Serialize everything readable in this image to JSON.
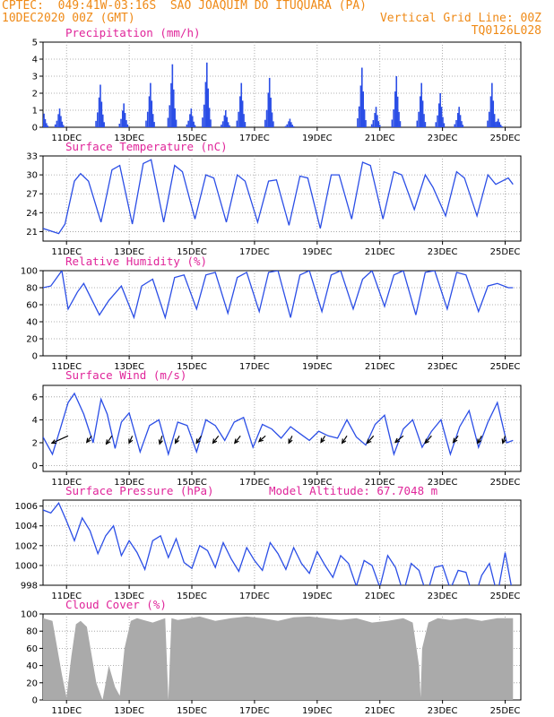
{
  "header": {
    "line1_left": "CPTEC:  049:41W-03:16S  SAO JOAQUIM DO ITUQUARA (PA)",
    "line2_left": "10DEC2020 00Z (GMT)",
    "line2_right": "Vertical Grid Line: 00Z",
    "line3_right": "TQ0126L028"
  },
  "colors": {
    "header": "#ef8a17",
    "title": "#e0259a",
    "series": "#2b4ee6",
    "cloud": "#aaaaaa",
    "grid": "#999999"
  },
  "x_tick_labels": [
    "11DEC",
    "13DEC",
    "15DEC",
    "17DEC",
    "19DEC",
    "21DEC",
    "23DEC",
    "25DEC"
  ],
  "chart_data": [
    {
      "id": "precip",
      "type": "bar",
      "title": "Precipitation (mm/h)",
      "ylim": [
        0,
        5
      ],
      "yticks": [
        0,
        1,
        2,
        3,
        4,
        5
      ],
      "x_unit": "days since 10DEC2020 00Z",
      "spikes": [
        {
          "x": 0.05,
          "peak": 0.8
        },
        {
          "x": 0.55,
          "peak": 1.1
        },
        {
          "x": 1.85,
          "peak": 2.5
        },
        {
          "x": 2.6,
          "peak": 1.4
        },
        {
          "x": 3.45,
          "peak": 2.6
        },
        {
          "x": 4.15,
          "peak": 3.7
        },
        {
          "x": 4.75,
          "peak": 1.1
        },
        {
          "x": 5.25,
          "peak": 3.8
        },
        {
          "x": 5.85,
          "peak": 1.0
        },
        {
          "x": 6.35,
          "peak": 2.6
        },
        {
          "x": 7.25,
          "peak": 2.9
        },
        {
          "x": 7.9,
          "peak": 0.5
        },
        {
          "x": 10.2,
          "peak": 3.5
        },
        {
          "x": 10.65,
          "peak": 1.2
        },
        {
          "x": 11.3,
          "peak": 3.0
        },
        {
          "x": 12.1,
          "peak": 2.6
        },
        {
          "x": 12.7,
          "peak": 2.0
        },
        {
          "x": 13.3,
          "peak": 1.2
        },
        {
          "x": 14.35,
          "peak": 2.6
        },
        {
          "x": 14.55,
          "peak": 0.5
        }
      ]
    },
    {
      "id": "temp",
      "type": "line",
      "title": "Surface Temperature (nC)",
      "ylim": [
        19.5,
        33
      ],
      "yticks": [
        21,
        24,
        27,
        30,
        33
      ],
      "x": [
        0,
        0.5,
        0.7,
        1.0,
        1.2,
        1.45,
        1.85,
        2.2,
        2.45,
        2.85,
        3.2,
        3.45,
        3.85,
        4.2,
        4.45,
        4.85,
        5.2,
        5.45,
        5.85,
        6.2,
        6.45,
        6.85,
        7.2,
        7.45,
        7.85,
        8.2,
        8.45,
        8.85,
        9.2,
        9.45,
        9.85,
        10.2,
        10.45,
        10.85,
        11.2,
        11.45,
        11.85,
        12.2,
        12.45,
        12.85,
        13.2,
        13.45,
        13.85,
        14.2,
        14.45,
        14.85,
        15.0
      ],
      "values": [
        21.5,
        20.7,
        22.2,
        29.0,
        30.2,
        29.0,
        22.5,
        30.8,
        31.5,
        22.2,
        31.8,
        32.4,
        22.5,
        31.5,
        30.5,
        23.0,
        30.0,
        29.5,
        22.5,
        30.0,
        29.0,
        22.5,
        29.0,
        29.2,
        22.0,
        29.8,
        29.5,
        21.5,
        30.0,
        30.0,
        23.0,
        32.0,
        31.5,
        23.0,
        30.5,
        30.0,
        24.5,
        30.0,
        28.0,
        23.5,
        30.5,
        29.5,
        23.5,
        30.0,
        28.5,
        29.5,
        28.5
      ]
    },
    {
      "id": "rh",
      "type": "line",
      "title": "Relative Humidity (%)",
      "ylim": [
        0,
        100
      ],
      "yticks": [
        0,
        20,
        40,
        60,
        80,
        100
      ],
      "x": [
        0,
        0.25,
        0.6,
        0.8,
        1.1,
        1.3,
        1.8,
        2.1,
        2.5,
        2.9,
        3.15,
        3.5,
        3.9,
        4.2,
        4.5,
        4.9,
        5.2,
        5.5,
        5.9,
        6.2,
        6.5,
        6.9,
        7.2,
        7.5,
        7.9,
        8.2,
        8.5,
        8.9,
        9.2,
        9.5,
        9.9,
        10.2,
        10.5,
        10.9,
        11.2,
        11.5,
        11.9,
        12.2,
        12.5,
        12.9,
        13.2,
        13.5,
        13.9,
        14.2,
        14.5,
        14.85,
        15.0
      ],
      "values": [
        80,
        82,
        100,
        55,
        75,
        85,
        48,
        65,
        82,
        45,
        82,
        90,
        45,
        92,
        95,
        55,
        95,
        98,
        50,
        92,
        98,
        52,
        98,
        100,
        45,
        95,
        100,
        52,
        95,
        100,
        55,
        90,
        100,
        58,
        95,
        100,
        48,
        98,
        100,
        55,
        98,
        95,
        52,
        82,
        85,
        80,
        80
      ]
    },
    {
      "id": "wind",
      "type": "line",
      "title": "Surface Wind (m/s)",
      "ylim": [
        -0.5,
        7
      ],
      "yticks": [
        0,
        2,
        4,
        6
      ],
      "x": [
        0,
        0.3,
        0.55,
        0.8,
        1.0,
        1.3,
        1.6,
        1.85,
        2.05,
        2.3,
        2.5,
        2.75,
        3.1,
        3.4,
        3.7,
        4.0,
        4.3,
        4.6,
        4.9,
        5.2,
        5.5,
        5.8,
        6.1,
        6.4,
        6.7,
        7.0,
        7.3,
        7.6,
        7.9,
        8.2,
        8.5,
        8.8,
        9.1,
        9.4,
        9.7,
        10.0,
        10.3,
        10.6,
        10.9,
        11.2,
        11.5,
        11.8,
        12.1,
        12.4,
        12.7,
        13.0,
        13.3,
        13.6,
        13.9,
        14.2,
        14.5,
        14.8,
        15.0
      ],
      "values": [
        2.5,
        1.0,
        3.2,
        5.5,
        6.3,
        4.5,
        2.0,
        5.8,
        4.5,
        1.5,
        3.8,
        4.6,
        1.2,
        3.5,
        4.0,
        1.0,
        3.8,
        3.5,
        1.2,
        4.0,
        3.5,
        2.2,
        3.8,
        4.2,
        1.6,
        3.6,
        3.2,
        2.4,
        3.4,
        2.8,
        2.2,
        3.0,
        2.6,
        2.4,
        4.0,
        2.5,
        1.8,
        3.6,
        4.4,
        1.0,
        3.2,
        4.0,
        1.6,
        3.0,
        4.0,
        1.0,
        3.4,
        4.8,
        1.6,
        3.8,
        5.5,
        2.0,
        2.2
      ],
      "arrows": [
        {
          "x": 0.8,
          "dx": -2.0,
          "dy": -0.9
        },
        {
          "x": 1.55,
          "dx": -0.6,
          "dy": -0.8
        },
        {
          "x": 2.2,
          "dx": -0.7,
          "dy": -1.0
        },
        {
          "x": 2.85,
          "dx": -0.4,
          "dy": -0.9
        },
        {
          "x": 3.8,
          "dx": -0.3,
          "dy": -1.0
        },
        {
          "x": 4.35,
          "dx": -0.5,
          "dy": -0.9
        },
        {
          "x": 5.05,
          "dx": -0.6,
          "dy": -0.9
        },
        {
          "x": 5.6,
          "dx": -0.7,
          "dy": -0.9
        },
        {
          "x": 6.3,
          "dx": -0.7,
          "dy": -0.9
        },
        {
          "x": 7.1,
          "dx": -0.8,
          "dy": -0.7
        },
        {
          "x": 7.95,
          "dx": -0.4,
          "dy": -0.9
        },
        {
          "x": 9.0,
          "dx": -0.5,
          "dy": -0.8
        },
        {
          "x": 9.7,
          "dx": -0.6,
          "dy": -0.9
        },
        {
          "x": 10.55,
          "dx": -0.8,
          "dy": -0.9
        },
        {
          "x": 11.5,
          "dx": -1.0,
          "dy": -0.8
        },
        {
          "x": 12.4,
          "dx": -0.8,
          "dy": -0.9
        },
        {
          "x": 13.25,
          "dx": -0.6,
          "dy": -0.8
        },
        {
          "x": 14.0,
          "dx": -0.5,
          "dy": -0.9
        },
        {
          "x": 14.75,
          "dx": -0.3,
          "dy": -0.9
        }
      ]
    },
    {
      "id": "pres",
      "type": "line",
      "title": "Surface Pressure (hPa)",
      "subtitle": "Model Altitude: 67.7048 m",
      "ylim": [
        998,
        1006.6
      ],
      "yticks": [
        998,
        1000,
        1002,
        1004,
        1006
      ],
      "x": [
        0,
        0.25,
        0.5,
        0.75,
        1.0,
        1.25,
        1.5,
        1.75,
        2.0,
        2.25,
        2.5,
        2.75,
        3.0,
        3.25,
        3.5,
        3.75,
        4.0,
        4.25,
        4.5,
        4.75,
        5.0,
        5.25,
        5.5,
        5.75,
        6.0,
        6.25,
        6.5,
        6.75,
        7.0,
        7.25,
        7.5,
        7.75,
        8.0,
        8.25,
        8.5,
        8.75,
        9.0,
        9.25,
        9.5,
        9.75,
        10.0,
        10.25,
        10.5,
        10.75,
        11.0,
        11.25,
        11.5,
        11.75,
        12.0,
        12.25,
        12.5,
        12.75,
        13.0,
        13.25,
        13.5,
        13.75,
        14.0,
        14.25,
        14.5,
        14.75,
        15.0
      ],
      "values": [
        1005.6,
        1005.3,
        1006.3,
        1004.5,
        1002.5,
        1004.8,
        1003.5,
        1001.2,
        1003.0,
        1004.0,
        1001.0,
        1002.5,
        1001.3,
        999.6,
        1002.5,
        1003.0,
        1000.8,
        1002.7,
        1000.3,
        999.7,
        1002.0,
        1001.5,
        999.8,
        1002.3,
        1000.7,
        999.4,
        1001.8,
        1000.5,
        999.5,
        1002.3,
        1001.2,
        999.6,
        1001.8,
        1000.2,
        999.2,
        1001.4,
        1000.0,
        998.8,
        1001.0,
        1000.2,
        997.9,
        1000.5,
        1000.0,
        997.8,
        1001.0,
        999.8,
        997.2,
        1000.2,
        999.5,
        997.0,
        999.8,
        1000.0,
        997.6,
        999.5,
        999.3,
        996.5,
        999.0,
        1000.2,
        997.0,
        1001.3,
        997.0
      ]
    },
    {
      "id": "cloud",
      "type": "area",
      "title": "Cloud Cover (%)",
      "ylim": [
        0,
        100
      ],
      "yticks": [
        0,
        20,
        40,
        60,
        80,
        100
      ],
      "x": [
        0,
        0.3,
        0.6,
        0.75,
        0.9,
        1.05,
        1.2,
        1.4,
        1.7,
        1.9,
        2.1,
        2.3,
        2.45,
        2.6,
        2.8,
        3.0,
        3.2,
        3.5,
        3.9,
        4.0,
        4.1,
        4.3,
        5.0,
        5.5,
        6.0,
        6.5,
        7.0,
        7.5,
        8.0,
        8.5,
        9.0,
        9.5,
        10.0,
        10.5,
        11.0,
        11.5,
        11.8,
        12.0,
        12.05,
        12.1,
        12.3,
        12.6,
        13.0,
        13.5,
        14.0,
        14.5,
        15.0
      ],
      "values": [
        95,
        92,
        30,
        3,
        50,
        88,
        92,
        85,
        20,
        0,
        40,
        15,
        5,
        60,
        92,
        95,
        93,
        90,
        95,
        0,
        95,
        93,
        97,
        92,
        95,
        97,
        95,
        92,
        96,
        97,
        95,
        93,
        95,
        90,
        92,
        95,
        90,
        40,
        3,
        60,
        90,
        95,
        93,
        95,
        92,
        95,
        95
      ]
    }
  ]
}
